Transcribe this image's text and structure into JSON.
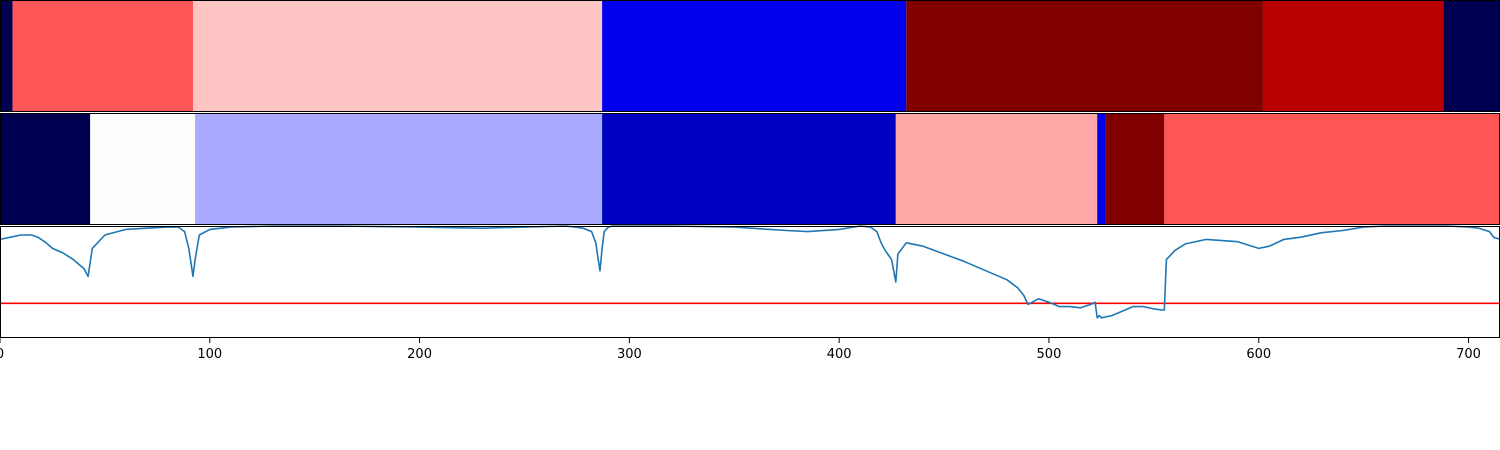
{
  "chart_data": [
    {
      "type": "heatmap",
      "xlim": [
        0,
        715
      ],
      "segments": [
        {
          "start": 0,
          "end": 6,
          "color": "#000050"
        },
        {
          "start": 6,
          "end": 92,
          "color": "#ff5555"
        },
        {
          "start": 92,
          "end": 287,
          "color": "#ffc4c4"
        },
        {
          "start": 287,
          "end": 432,
          "color": "#0000ec"
        },
        {
          "start": 432,
          "end": 602,
          "color": "#800000"
        },
        {
          "start": 602,
          "end": 688,
          "color": "#b80000"
        },
        {
          "start": 688,
          "end": 715,
          "color": "#000050"
        }
      ]
    },
    {
      "type": "heatmap",
      "xlim": [
        0,
        715
      ],
      "segments": [
        {
          "start": 0,
          "end": 43,
          "color": "#000050"
        },
        {
          "start": 43,
          "end": 93,
          "color": "#fffcfc"
        },
        {
          "start": 93,
          "end": 287,
          "color": "#aaaaff"
        },
        {
          "start": 287,
          "end": 427,
          "color": "#0000c2"
        },
        {
          "start": 427,
          "end": 523,
          "color": "#ffa8a8"
        },
        {
          "start": 523,
          "end": 527,
          "color": "#0000ec"
        },
        {
          "start": 527,
          "end": 555,
          "color": "#800000"
        },
        {
          "start": 555,
          "end": 715,
          "color": "#ff5555"
        }
      ]
    },
    {
      "type": "line",
      "xlim": [
        0,
        715
      ],
      "ylim": [
        0,
        1
      ],
      "xticks": [
        0,
        100,
        200,
        300,
        400,
        500,
        600,
        700
      ],
      "grid": false,
      "series": [
        {
          "color": "#1f77b4",
          "x": [
            0,
            5,
            10,
            15,
            18,
            22,
            25,
            30,
            35,
            40,
            42,
            44,
            50,
            60,
            70,
            80,
            85,
            88,
            90,
            92,
            93,
            95,
            100,
            110,
            130,
            160,
            200,
            230,
            250,
            270,
            278,
            282,
            284,
            285,
            286,
            287,
            288,
            290,
            292,
            300,
            320,
            350,
            375,
            385,
            400,
            410,
            415,
            418,
            420,
            422,
            425,
            426,
            427,
            428,
            432,
            440,
            450,
            460,
            470,
            480,
            485,
            488,
            490,
            495,
            500,
            505,
            510,
            515,
            520,
            522,
            523,
            524,
            525,
            530,
            535,
            540,
            545,
            550,
            554,
            555,
            556,
            560,
            565,
            575,
            590,
            600,
            605,
            612,
            620,
            630,
            640,
            650,
            660,
            680,
            690,
            700,
            705,
            710,
            712,
            715
          ],
          "y": [
            0.88,
            0.9,
            0.92,
            0.92,
            0.9,
            0.85,
            0.8,
            0.76,
            0.7,
            0.62,
            0.55,
            0.8,
            0.92,
            0.97,
            0.98,
            0.99,
            0.99,
            0.95,
            0.8,
            0.55,
            0.7,
            0.92,
            0.97,
            0.99,
            1.0,
            1.0,
            0.99,
            0.98,
            0.99,
            1.0,
            0.98,
            0.95,
            0.85,
            0.72,
            0.6,
            0.8,
            0.95,
            0.99,
            1.0,
            1.0,
            1.0,
            0.99,
            0.96,
            0.95,
            0.97,
            1.0,
            0.99,
            0.95,
            0.85,
            0.78,
            0.7,
            0.6,
            0.5,
            0.75,
            0.85,
            0.82,
            0.75,
            0.68,
            0.6,
            0.52,
            0.45,
            0.38,
            0.3,
            0.35,
            0.32,
            0.28,
            0.28,
            0.27,
            0.3,
            0.32,
            0.18,
            0.2,
            0.18,
            0.2,
            0.24,
            0.28,
            0.28,
            0.26,
            0.25,
            0.25,
            0.7,
            0.78,
            0.84,
            0.88,
            0.86,
            0.8,
            0.82,
            0.88,
            0.9,
            0.94,
            0.96,
            0.99,
            1.0,
            1.0,
            1.0,
            0.99,
            0.98,
            0.95,
            0.9,
            0.88
          ]
        }
      ],
      "hline": {
        "y": 0.31,
        "color": "#ff0000"
      }
    }
  ]
}
